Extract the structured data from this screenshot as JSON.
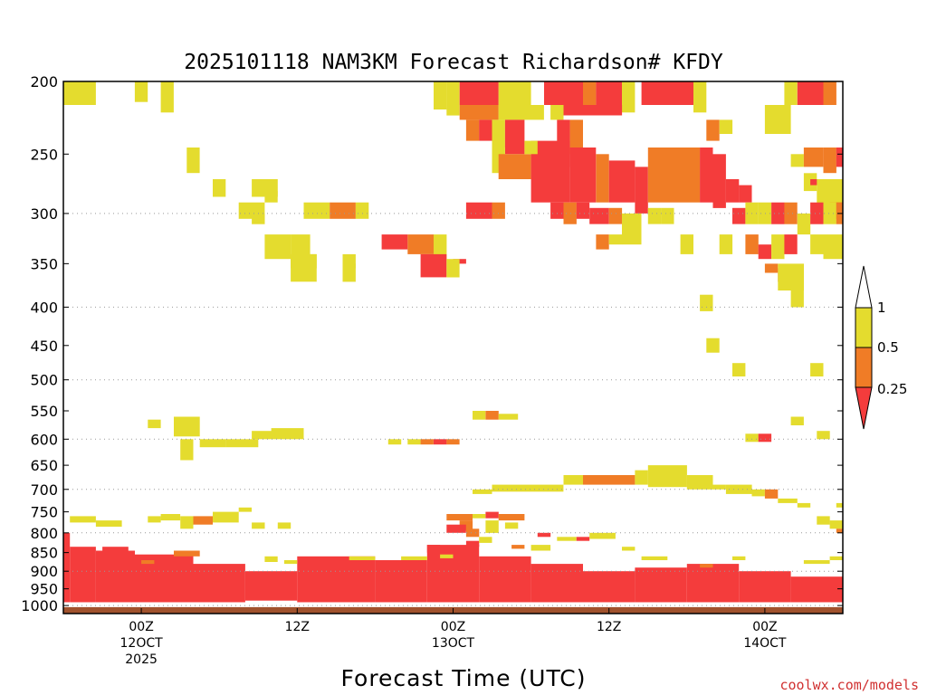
{
  "title": "2025101118 NAM3KM Forecast Richardson# KFDY",
  "credit": "coolwx.com/models",
  "colors": {
    "lt_025": "#f43c3c",
    "025_05": "#f07c26",
    "05_1": "#e4dc2e",
    "ground": "#a0522d",
    "credit": "#d03030"
  },
  "chart_data": {
    "type": "heatmap",
    "title": "2025101118 NAM3KM Forecast Richardson# KFDY",
    "xlabel": "Forecast Time (UTC)",
    "ylabel": "",
    "y_axis": "pressure (hPa), log scale, inverted",
    "ylim": [
      1025,
      200
    ],
    "xlim_hours_after_2025101118": [
      0,
      60
    ],
    "y_ticks": [
      200,
      250,
      300,
      350,
      400,
      450,
      500,
      550,
      600,
      650,
      700,
      750,
      800,
      850,
      900,
      950,
      1000
    ],
    "x_ticks": [
      {
        "hour": 6,
        "lines": [
          "00Z",
          "12OCT",
          "2025"
        ]
      },
      {
        "hour": 18,
        "lines": [
          "12Z"
        ]
      },
      {
        "hour": 30,
        "lines": [
          "00Z",
          "13OCT"
        ]
      },
      {
        "hour": 42,
        "lines": [
          "12Z"
        ]
      },
      {
        "hour": 54,
        "lines": [
          "00Z",
          "14OCT"
        ]
      }
    ],
    "legend": {
      "placement": "right",
      "labels": [
        "1",
        "0.5",
        "0.25"
      ],
      "bins": [
        "<0.25",
        "0.25-0.5",
        "0.5-1"
      ]
    },
    "grid": "dotted horizontal at 300, 400, 500, 600, 700, 800, 900, 1000 hPa",
    "surface_pressure_hPa": 1005,
    "cells": [
      [
        0,
        2.5,
        200,
        215,
        "y"
      ],
      [
        5.5,
        6.5,
        200,
        213,
        "y"
      ],
      [
        7.5,
        8.5,
        200,
        220,
        "y"
      ],
      [
        28.5,
        29.5,
        200,
        218,
        "y"
      ],
      [
        29.5,
        30.5,
        200,
        222,
        "y"
      ],
      [
        30.5,
        33.5,
        200,
        215,
        "r"
      ],
      [
        33.5,
        36,
        200,
        215,
        "y"
      ],
      [
        37,
        40,
        200,
        215,
        "r"
      ],
      [
        40,
        41,
        200,
        215,
        "o"
      ],
      [
        41,
        43,
        200,
        215,
        "r"
      ],
      [
        43,
        44,
        200,
        220,
        "y"
      ],
      [
        44.5,
        48.5,
        200,
        215,
        "r"
      ],
      [
        48.5,
        49.5,
        200,
        220,
        "y"
      ],
      [
        55.5,
        56.5,
        200,
        215,
        "y"
      ],
      [
        56.5,
        58.5,
        200,
        215,
        "r"
      ],
      [
        58.5,
        59.5,
        200,
        215,
        "o"
      ],
      [
        30.5,
        33.5,
        215,
        225,
        "o"
      ],
      [
        33.5,
        37,
        215,
        225,
        "y"
      ],
      [
        37.5,
        38.5,
        215,
        225,
        "y"
      ],
      [
        38.5,
        43,
        215,
        222,
        "r"
      ],
      [
        54,
        56,
        215,
        235,
        "y"
      ],
      [
        31,
        32,
        225,
        240,
        "o"
      ],
      [
        32,
        33,
        225,
        240,
        "r"
      ],
      [
        33,
        34,
        225,
        245,
        "y"
      ],
      [
        34,
        35.5,
        225,
        250,
        "r"
      ],
      [
        38,
        39,
        225,
        260,
        "r"
      ],
      [
        39,
        40,
        225,
        250,
        "o"
      ],
      [
        49.5,
        50.5,
        225,
        240,
        "o"
      ],
      [
        50.5,
        51.5,
        225,
        235,
        "y"
      ],
      [
        33,
        34,
        245,
        265,
        "y"
      ],
      [
        33.5,
        36,
        250,
        270,
        "o"
      ],
      [
        36,
        39,
        240,
        290,
        "r"
      ],
      [
        35.5,
        36.5,
        240,
        250,
        "y"
      ],
      [
        39,
        41,
        245,
        290,
        "r"
      ],
      [
        41,
        42,
        250,
        290,
        "o"
      ],
      [
        42,
        44,
        255,
        290,
        "r"
      ],
      [
        44,
        45,
        260,
        300,
        "r"
      ],
      [
        45,
        47,
        245,
        290,
        "o"
      ],
      [
        47,
        49,
        245,
        290,
        "o"
      ],
      [
        49,
        50,
        245,
        290,
        "r"
      ],
      [
        50,
        51,
        250,
        295,
        "r"
      ],
      [
        51,
        52,
        270,
        290,
        "r"
      ],
      [
        52,
        53,
        275,
        290,
        "r"
      ],
      [
        56,
        57,
        250,
        260,
        "y"
      ],
      [
        57,
        58.5,
        245,
        260,
        "o"
      ],
      [
        58.5,
        59.5,
        245,
        265,
        "o"
      ],
      [
        59.5,
        60,
        245,
        260,
        "r"
      ],
      [
        57,
        58,
        265,
        280,
        "y"
      ],
      [
        57.5,
        59,
        270,
        275,
        "r"
      ],
      [
        58,
        60,
        270,
        295,
        "y"
      ],
      [
        59,
        60,
        290,
        305,
        "o"
      ],
      [
        9.5,
        10.5,
        245,
        265,
        "y"
      ],
      [
        11.5,
        12.5,
        270,
        285,
        "y"
      ],
      [
        14.5,
        16.5,
        270,
        285,
        "y"
      ],
      [
        15.5,
        16.5,
        280,
        290,
        "y"
      ],
      [
        13.5,
        15.5,
        290,
        305,
        "y"
      ],
      [
        14.5,
        15.5,
        300,
        310,
        "y"
      ],
      [
        18.5,
        20.5,
        290,
        305,
        "y"
      ],
      [
        20.5,
        22.5,
        290,
        305,
        "o"
      ],
      [
        22.5,
        23.5,
        290,
        305,
        "y"
      ],
      [
        31,
        33,
        290,
        305,
        "r"
      ],
      [
        33,
        34,
        290,
        305,
        "o"
      ],
      [
        37.5,
        38.5,
        290,
        305,
        "r"
      ],
      [
        38.5,
        39.5,
        290,
        310,
        "o"
      ],
      [
        39.5,
        40.5,
        290,
        305,
        "r"
      ],
      [
        40.5,
        42,
        295,
        310,
        "r"
      ],
      [
        42,
        43,
        295,
        310,
        "o"
      ],
      [
        43,
        44.5,
        300,
        330,
        "y"
      ],
      [
        45,
        46,
        295,
        310,
        "y"
      ],
      [
        46,
        47,
        295,
        310,
        "y"
      ],
      [
        51.5,
        52.5,
        295,
        310,
        "r"
      ],
      [
        52.5,
        53.5,
        290,
        310,
        "y"
      ],
      [
        53.5,
        54.5,
        290,
        310,
        "y"
      ],
      [
        54.5,
        55.5,
        290,
        310,
        "r"
      ],
      [
        55.5,
        56.5,
        290,
        310,
        "o"
      ],
      [
        56.5,
        57.5,
        300,
        320,
        "y"
      ],
      [
        57.5,
        58.5,
        290,
        310,
        "r"
      ],
      [
        58.5,
        59.5,
        290,
        310,
        "y"
      ],
      [
        59.5,
        60,
        290,
        310,
        "o"
      ],
      [
        15.5,
        17.5,
        320,
        345,
        "y"
      ],
      [
        17.5,
        19,
        320,
        345,
        "y"
      ],
      [
        17.5,
        19.5,
        340,
        355,
        "y"
      ],
      [
        21.5,
        22.5,
        340,
        355,
        "y"
      ],
      [
        24.5,
        26.5,
        320,
        335,
        "r"
      ],
      [
        26.5,
        28.5,
        320,
        340,
        "o"
      ],
      [
        28.5,
        29.5,
        320,
        345,
        "y"
      ],
      [
        30,
        31,
        345,
        350,
        "r"
      ],
      [
        41,
        42,
        320,
        335,
        "o"
      ],
      [
        42,
        43,
        320,
        330,
        "y"
      ],
      [
        47.5,
        48.5,
        320,
        340,
        "y"
      ],
      [
        50.5,
        51.5,
        320,
        340,
        "y"
      ],
      [
        52.5,
        53.5,
        320,
        340,
        "o"
      ],
      [
        53.5,
        54.5,
        330,
        345,
        "r"
      ],
      [
        54.5,
        55.5,
        320,
        345,
        "y"
      ],
      [
        55.5,
        56.5,
        320,
        340,
        "r"
      ],
      [
        57.5,
        58.5,
        320,
        340,
        "y"
      ],
      [
        58.5,
        60,
        320,
        345,
        "y"
      ],
      [
        17.5,
        19.5,
        340,
        370,
        "y"
      ],
      [
        21.5,
        22.5,
        350,
        370,
        "y"
      ],
      [
        27.5,
        29.5,
        340,
        365,
        "r"
      ],
      [
        29.5,
        30.5,
        345,
        365,
        "y"
      ],
      [
        54,
        55,
        350,
        360,
        "o"
      ],
      [
        55,
        56,
        355,
        370,
        "r"
      ],
      [
        55,
        57,
        350,
        380,
        "y"
      ],
      [
        56,
        57,
        380,
        400,
        "y"
      ],
      [
        49,
        50,
        385,
        405,
        "y"
      ],
      [
        49.5,
        50.5,
        440,
        460,
        "y"
      ],
      [
        51.5,
        52.5,
        475,
        495,
        "y"
      ],
      [
        57.5,
        58.5,
        475,
        495,
        "y"
      ],
      [
        6.5,
        7.5,
        565,
        580,
        "y"
      ],
      [
        8.5,
        10.5,
        560,
        595,
        "y"
      ],
      [
        9,
        10,
        600,
        640,
        "y"
      ],
      [
        10.5,
        12.5,
        600,
        615,
        "y"
      ],
      [
        12.5,
        15,
        600,
        615,
        "y"
      ],
      [
        14.5,
        18.5,
        585,
        600,
        "y"
      ],
      [
        16,
        18.5,
        580,
        590,
        "y"
      ],
      [
        25,
        26,
        600,
        610,
        "y"
      ],
      [
        26.5,
        27.5,
        600,
        610,
        "y"
      ],
      [
        27.5,
        28.5,
        600,
        610,
        "o"
      ],
      [
        28.5,
        29.5,
        600,
        610,
        "r"
      ],
      [
        29.5,
        30.5,
        600,
        610,
        "o"
      ],
      [
        31.5,
        32.5,
        550,
        565,
        "y"
      ],
      [
        32.5,
        33.5,
        550,
        565,
        "o"
      ],
      [
        33.5,
        35,
        555,
        565,
        "y"
      ],
      [
        52.5,
        53.5,
        590,
        605,
        "y"
      ],
      [
        53.5,
        54.5,
        590,
        605,
        "r"
      ],
      [
        56,
        57,
        560,
        575,
        "y"
      ],
      [
        58,
        59,
        585,
        600,
        "y"
      ],
      [
        38.5,
        40,
        670,
        690,
        "y"
      ],
      [
        40,
        44,
        670,
        690,
        "o"
      ],
      [
        44,
        45,
        660,
        690,
        "y"
      ],
      [
        45,
        48,
        650,
        695,
        "y"
      ],
      [
        48,
        50,
        670,
        700,
        "y"
      ],
      [
        50,
        51,
        690,
        700,
        "y"
      ],
      [
        33,
        38.5,
        690,
        705,
        "y"
      ],
      [
        31.5,
        33,
        700,
        710,
        "y"
      ],
      [
        51,
        53,
        690,
        710,
        "y"
      ],
      [
        53,
        54,
        700,
        715,
        "y"
      ],
      [
        54,
        55,
        700,
        720,
        "o"
      ],
      [
        55,
        56.5,
        720,
        730,
        "y"
      ],
      [
        56.5,
        57.5,
        730,
        740,
        "y"
      ],
      [
        59.5,
        60,
        730,
        740,
        "y"
      ],
      [
        0.5,
        2.5,
        760,
        775,
        "y"
      ],
      [
        2.5,
        4.5,
        770,
        785,
        "y"
      ],
      [
        6.5,
        7.5,
        760,
        775,
        "y"
      ],
      [
        7.5,
        9,
        755,
        770,
        "y"
      ],
      [
        9,
        10,
        760,
        790,
        "y"
      ],
      [
        10,
        11.5,
        760,
        780,
        "o"
      ],
      [
        11.5,
        13.5,
        750,
        775,
        "y"
      ],
      [
        13.5,
        14.5,
        740,
        750,
        "y"
      ],
      [
        14.5,
        15.5,
        775,
        790,
        "y"
      ],
      [
        16.5,
        17.5,
        775,
        790,
        "y"
      ],
      [
        29.5,
        31.5,
        755,
        770,
        "o"
      ],
      [
        31.5,
        32.5,
        755,
        765,
        "y"
      ],
      [
        32.5,
        33.5,
        750,
        765,
        "r"
      ],
      [
        33.5,
        35.5,
        755,
        770,
        "o"
      ],
      [
        30.5,
        31.5,
        770,
        795,
        "o"
      ],
      [
        32.5,
        33.5,
        770,
        800,
        "y"
      ],
      [
        34,
        35,
        775,
        790,
        "y"
      ],
      [
        58,
        59,
        760,
        780,
        "y"
      ],
      [
        59,
        60,
        770,
        790,
        "y"
      ],
      [
        59.5,
        60,
        790,
        800,
        "o"
      ],
      [
        0,
        0.5,
        800,
        990,
        "r"
      ],
      [
        0.5,
        2.5,
        835,
        990,
        "r"
      ],
      [
        2.5,
        5.5,
        845,
        990,
        "r"
      ],
      [
        5.5,
        10,
        855,
        990,
        "r"
      ],
      [
        10,
        14,
        880,
        990,
        "r"
      ],
      [
        14,
        18,
        900,
        985,
        "r"
      ],
      [
        18,
        24,
        860,
        990,
        "r"
      ],
      [
        24,
        28,
        870,
        990,
        "r"
      ],
      [
        28,
        32,
        830,
        990,
        "r"
      ],
      [
        32,
        36,
        860,
        990,
        "r"
      ],
      [
        36,
        40,
        880,
        990,
        "r"
      ],
      [
        40,
        44,
        900,
        990,
        "r"
      ],
      [
        44,
        48,
        890,
        990,
        "r"
      ],
      [
        48,
        52,
        880,
        990,
        "r"
      ],
      [
        52,
        56,
        900,
        990,
        "r"
      ],
      [
        56,
        60,
        915,
        990,
        "r"
      ],
      [
        2.5,
        5,
        850,
        870,
        "r"
      ],
      [
        3,
        5,
        835,
        845,
        "r"
      ],
      [
        6,
        7,
        870,
        880,
        "o"
      ],
      [
        8.5,
        10.5,
        845,
        860,
        "o"
      ],
      [
        15.5,
        16.5,
        860,
        875,
        "y"
      ],
      [
        17,
        18,
        870,
        880,
        "y"
      ],
      [
        22,
        24,
        860,
        870,
        "y"
      ],
      [
        26,
        28,
        860,
        870,
        "y"
      ],
      [
        28,
        29,
        830,
        850,
        "r"
      ],
      [
        29,
        30,
        855,
        865,
        "y"
      ],
      [
        31,
        32,
        820,
        835,
        "r"
      ],
      [
        32,
        33,
        810,
        825,
        "y"
      ],
      [
        34.5,
        35.5,
        830,
        840,
        "o"
      ],
      [
        36,
        37.5,
        830,
        845,
        "y"
      ],
      [
        38,
        39.5,
        810,
        820,
        "y"
      ],
      [
        39.5,
        40.5,
        810,
        820,
        "r"
      ],
      [
        40.5,
        42.5,
        800,
        815,
        "y"
      ],
      [
        43,
        44,
        835,
        845,
        "y"
      ],
      [
        44.5,
        46.5,
        860,
        870,
        "y"
      ],
      [
        49,
        50,
        880,
        890,
        "o"
      ],
      [
        51.5,
        52.5,
        860,
        870,
        "y"
      ],
      [
        59,
        60,
        860,
        870,
        "y"
      ],
      [
        57,
        59,
        870,
        880,
        "y"
      ],
      [
        29.5,
        31,
        780,
        800,
        "r"
      ],
      [
        31,
        32,
        790,
        810,
        "o"
      ],
      [
        36.5,
        37.5,
        800,
        810,
        "r"
      ],
      [
        0,
        60,
        1005,
        1025,
        "g"
      ]
    ]
  }
}
